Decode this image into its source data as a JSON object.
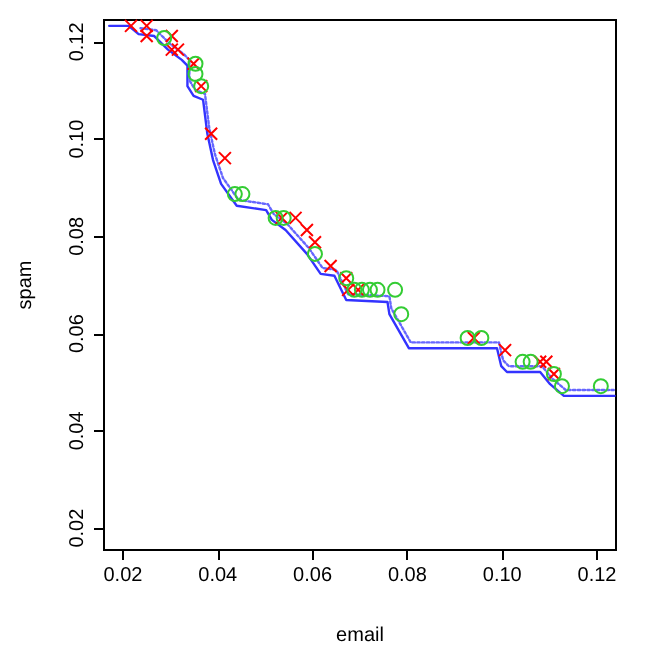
{
  "chart_data": {
    "type": "line",
    "xlabel": "email",
    "ylabel": "spam",
    "xlim": [
      0.016,
      0.124
    ],
    "ylim": [
      0.0155,
      0.1245
    ],
    "xticks": [
      0.02,
      0.04,
      0.06,
      0.08,
      {
        "value": 0.1,
        "label": "0.10"
      },
      0.12
    ],
    "yticks": [
      0.02,
      0.04,
      0.06,
      0.08,
      {
        "value": 0.1,
        "label": "0.10"
      },
      0.12
    ],
    "series": [
      {
        "color": "#3333ff",
        "line_style": "solid",
        "marker": "none",
        "x": [
          0.0171,
          0.0212,
          0.0233,
          0.0266,
          0.0295,
          0.0324,
          0.0336,
          0.0336,
          0.0349,
          0.0369,
          0.0378,
          0.039,
          0.0407,
          0.044,
          0.0502,
          0.0514,
          0.0543,
          0.0588,
          0.0617,
          0.0646,
          0.0671,
          0.0758,
          0.0762,
          0.0803,
          0.0989,
          0.0998,
          0.101,
          0.108,
          0.1101,
          0.113,
          0.1237
        ],
        "values": [
          0.1233,
          0.1233,
          0.1216,
          0.1212,
          0.1184,
          0.1163,
          0.1151,
          0.1109,
          0.1089,
          0.1081,
          0.1011,
          0.0957,
          0.0908,
          0.0863,
          0.0854,
          0.0834,
          0.0813,
          0.0764,
          0.0723,
          0.0719,
          0.0669,
          0.0665,
          0.064,
          0.057,
          0.057,
          0.0533,
          0.0521,
          0.0521,
          0.0496,
          0.0472,
          0.0472
        ]
      },
      {
        "color": "#6666ff",
        "line_style": "dotted",
        "marker": "none",
        "x": [
          0.0237,
          0.027,
          0.0299,
          0.0328,
          0.034,
          0.034,
          0.0353,
          0.0373,
          0.0382,
          0.0394,
          0.0411,
          0.0444,
          0.0506,
          0.0518,
          0.0547,
          0.0592,
          0.0621,
          0.065,
          0.0675,
          0.0762,
          0.0766,
          0.0807,
          0.0993,
          0.1002,
          0.1014,
          0.1084,
          0.1105,
          0.1134,
          0.1237
        ],
        "values": [
          0.1228,
          0.1224,
          0.1196,
          0.1175,
          0.1163,
          0.1121,
          0.1101,
          0.1093,
          0.1023,
          0.0969,
          0.092,
          0.0875,
          0.0866,
          0.0846,
          0.0825,
          0.0776,
          0.0735,
          0.0731,
          0.0681,
          0.0677,
          0.0652,
          0.0582,
          0.0582,
          0.0545,
          0.0533,
          0.0533,
          0.0508,
          0.0484,
          0.0484
        ]
      },
      {
        "type": "scatter",
        "color": "#ff0000",
        "marker": "cross",
        "x": [
          0.0217,
          0.025,
          0.025,
          0.0303,
          0.0303,
          0.0316,
          0.0349,
          0.0365,
          0.0386,
          0.0415,
          0.0535,
          0.0564,
          0.0588,
          0.0605,
          0.0638,
          0.0671,
          0.0675,
          0.0696,
          0.094,
          0.1006,
          0.108,
          0.1093,
          0.1109
        ],
        "values": [
          0.1233,
          0.1233,
          0.1212,
          0.1212,
          0.1184,
          0.1184,
          0.1155,
          0.1109,
          0.1011,
          0.0961,
          0.0838,
          0.0838,
          0.0813,
          0.0788,
          0.0739,
          0.0714,
          0.069,
          0.069,
          0.0591,
          0.0566,
          0.0542,
          0.0542,
          0.0517
        ]
      },
      {
        "type": "scatter",
        "color": "#33cc33",
        "marker": "circle",
        "x": [
          0.0287,
          0.0353,
          0.0353,
          0.0365,
          0.0436,
          0.0452,
          0.0522,
          0.0539,
          0.0605,
          0.0671,
          0.0688,
          0.0704,
          0.0721,
          0.0737,
          0.0774,
          0.0787,
          0.0927,
          0.0956,
          0.1043,
          0.106,
          0.1109,
          0.1126,
          0.1208
        ],
        "values": [
          0.1208,
          0.1155,
          0.1134,
          0.1109,
          0.0887,
          0.0887,
          0.0838,
          0.0838,
          0.0764,
          0.0714,
          0.069,
          0.069,
          0.069,
          0.069,
          0.069,
          0.064,
          0.0591,
          0.0591,
          0.0542,
          0.0542,
          0.0517,
          0.0492,
          0.0492
        ]
      }
    ]
  }
}
